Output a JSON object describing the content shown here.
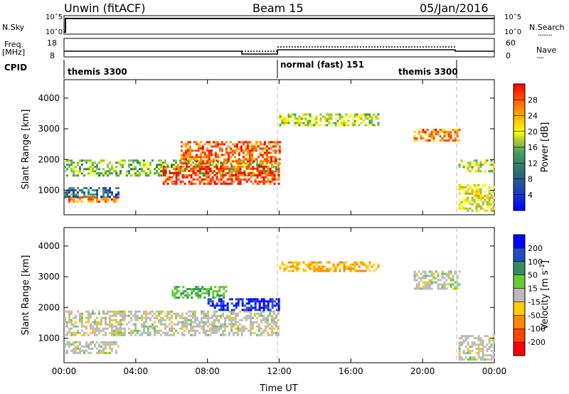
{
  "header": {
    "title_left": "Unwin (fitACF)",
    "title_center": "Beam 15",
    "title_right": "05/Jan/2016"
  },
  "nsky_panel": {
    "left_label": "N.Sky",
    "right_label": "N.Search",
    "right_legend": "........",
    "ticks_left": [
      "10^5",
      "10^0"
    ],
    "ticks_right": [
      "10^5",
      "10^0"
    ]
  },
  "freq_panel": {
    "left_label_1": "Freq.",
    "left_label_2": "[MHz]",
    "right_label": "Nave",
    "right_legend": "....",
    "ticks_left": [
      "18",
      "8"
    ],
    "ticks_right": [
      "60",
      "0"
    ]
  },
  "cpid_panel": {
    "label": "CPID",
    "segments": [
      {
        "name": "themis 3300",
        "start_hour": 0,
        "end_hour": 12
      },
      {
        "name": "normal (fast) 151",
        "start_hour": 12,
        "end_hour": 22
      },
      {
        "name": "themis 3300",
        "start_hour": 18,
        "end_hour": 22
      }
    ]
  },
  "chart_data": [
    {
      "type": "heatmap",
      "title": "",
      "xlabel": "",
      "ylabel": "Slant Range [km]",
      "xlim": [
        0,
        24
      ],
      "ylim": [
        200,
        4600
      ],
      "y_ticks": [
        1000,
        2000,
        3000,
        4000
      ],
      "colorbar": {
        "label": "Power [dB]",
        "ticks": [
          4,
          8,
          12,
          16,
          20,
          24,
          28
        ],
        "range": [
          0,
          32
        ],
        "colors": [
          "#0000ff",
          "#1f3fbf",
          "#2c6e6e",
          "#3f9c5f",
          "#88c640",
          "#ffff00",
          "#ffcc00",
          "#ff8c00",
          "#ff4400",
          "#ff0000"
        ]
      },
      "regions": [
        {
          "t0": 0,
          "t1": 12,
          "r0": 1500,
          "r1": 2000,
          "value": 14
        },
        {
          "t0": 0,
          "t1": 3,
          "r0": 600,
          "r1": 800,
          "value": 26
        },
        {
          "t0": 0,
          "t1": 3,
          "r0": 800,
          "r1": 1100,
          "value": 8
        },
        {
          "t0": 5.5,
          "t1": 12,
          "r0": 1200,
          "r1": 1800,
          "value": 28
        },
        {
          "t0": 6.5,
          "t1": 12,
          "r0": 1900,
          "r1": 2600,
          "value": 26
        },
        {
          "t0": 12,
          "t1": 17.5,
          "r0": 3100,
          "r1": 3500,
          "value": 16
        },
        {
          "t0": 19.5,
          "t1": 22,
          "r0": 2600,
          "r1": 3000,
          "value": 24
        },
        {
          "t0": 22,
          "t1": 24,
          "r0": 300,
          "r1": 1200,
          "value": 18
        },
        {
          "t0": 22,
          "t1": 24,
          "r0": 1600,
          "r1": 2000,
          "value": 16
        }
      ]
    },
    {
      "type": "heatmap",
      "title": "",
      "xlabel": "Time UT",
      "ylabel": "Slant Range [km]",
      "xlim": [
        0,
        24
      ],
      "ylim": [
        200,
        4600
      ],
      "x_ticks": [
        "00:00",
        "04:00",
        "08:00",
        "12:00",
        "16:00",
        "20:00",
        "00:00"
      ],
      "y_ticks": [
        1000,
        2000,
        3000,
        4000
      ],
      "colorbar": {
        "label": "Velocity [m s^-1]",
        "ticks": [
          200,
          100,
          50,
          15,
          -15,
          -50,
          -100,
          -200
        ],
        "colors": [
          "#0000ff",
          "#1f4fbf",
          "#2f8f5f",
          "#66cc33",
          "#bbbbbb",
          "#ffcc00",
          "#ff8800",
          "#ff4400",
          "#ff0000"
        ]
      },
      "regions": [
        {
          "t0": 0,
          "t1": 12,
          "r0": 1100,
          "r1": 1900,
          "value": 0
        },
        {
          "t0": 0,
          "t1": 3,
          "r0": 500,
          "r1": 900,
          "value": 0
        },
        {
          "t0": 8,
          "t1": 12,
          "r0": 1900,
          "r1": 2300,
          "value": 200
        },
        {
          "t0": 6,
          "t1": 9,
          "r0": 2300,
          "r1": 2700,
          "value": 50
        },
        {
          "t0": 12,
          "t1": 17.5,
          "r0": 3200,
          "r1": 3500,
          "value": -50
        },
        {
          "t0": 19.5,
          "t1": 22,
          "r0": 2600,
          "r1": 3200,
          "value": 0
        },
        {
          "t0": 22,
          "t1": 24,
          "r0": 300,
          "r1": 1100,
          "value": 0
        }
      ]
    }
  ],
  "time_axis_label": "Time UT",
  "x_tick_labels": [
    "00:00",
    "04:00",
    "08:00",
    "12:00",
    "16:00",
    "20:00",
    "00:00"
  ],
  "y_tick_labels": [
    "1000",
    "2000",
    "3000",
    "4000"
  ],
  "power_ticks": [
    "28",
    "24",
    "20",
    "16",
    "12",
    "8",
    "4"
  ],
  "velocity_ticks": [
    "200",
    "100",
    "50",
    "15",
    "-15",
    "-50",
    "-100",
    "-200"
  ],
  "power_label": "Power [dB]",
  "velocity_label": "Velocity [m s",
  "velocity_label_sup": "-1",
  "velocity_label_end": "]"
}
